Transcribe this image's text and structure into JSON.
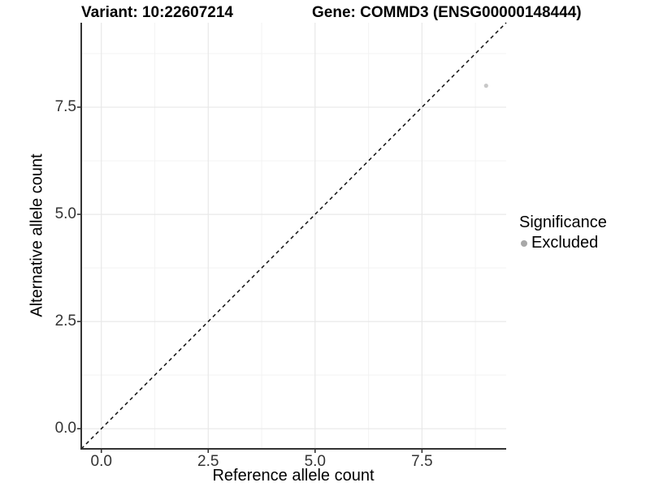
{
  "titles": {
    "variant": "Variant: 10:22607214",
    "gene": "Gene: COMMD3 (ENSG00000148444)"
  },
  "chart_data": {
    "type": "scatter",
    "title": "Variant: 10:22607214 — Gene: COMMD3 (ENSG00000148444)",
    "xlabel": "Reference allele count",
    "ylabel": "Alternative allele count",
    "x_range": [
      -0.47,
      9.47
    ],
    "y_range": [
      -0.47,
      9.47
    ],
    "x_ticks": {
      "values": [
        0,
        2.5,
        5,
        7.5
      ],
      "labels": [
        "0.0",
        "2.5",
        "5.0",
        "7.5"
      ]
    },
    "y_ticks": {
      "values": [
        0,
        2.5,
        5,
        7.5
      ],
      "labels": [
        "0.0",
        "2.5",
        "5.0",
        "7.5"
      ]
    },
    "minor_ticks": [
      1.25,
      3.75,
      6.25,
      8.75
    ],
    "grid": "major+minor",
    "reference_line": {
      "type": "identity y=x",
      "style": "dashed"
    },
    "series": [
      {
        "name": "Excluded",
        "points": [
          {
            "x": 9,
            "y": 8
          }
        ]
      }
    ],
    "legend": {
      "title": "Significance",
      "position": "right",
      "items": [
        {
          "label": "Excluded"
        }
      ]
    },
    "colors": {
      "grid_major": "#e8e8e8",
      "grid_minor": "#f3f3f3",
      "axis_line": "#333333",
      "tick_text": "#333333",
      "identity_line": "#111111",
      "point": "#c8c8c8",
      "legend_dot": "#a8a8a8"
    }
  }
}
